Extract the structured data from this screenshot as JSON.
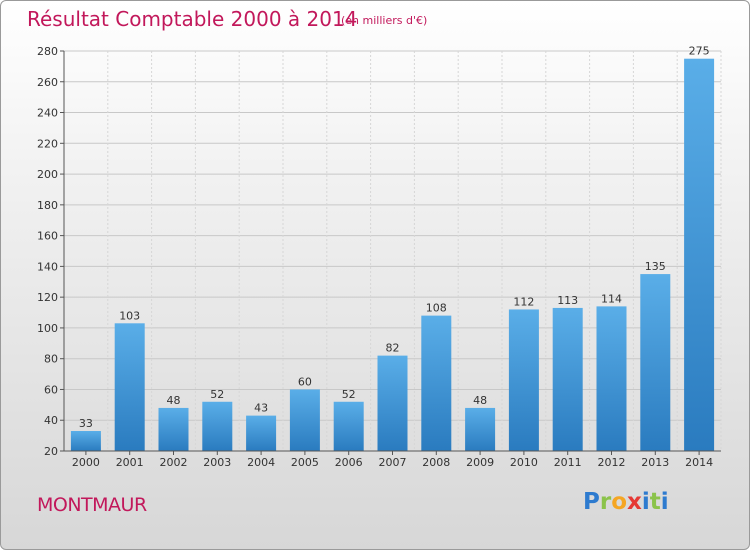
{
  "title": "Résultat Comptable 2000 à 2014",
  "subtitle": "(en milliers d'€)",
  "location": "MONTMAUR",
  "logo": {
    "letters": [
      "P",
      "r",
      "o",
      "x",
      "i",
      "t",
      "i"
    ],
    "colors": [
      "#2e7bcf",
      "#8bc34a",
      "#f5a623",
      "#e53935",
      "#2e7bcf",
      "#8bc34a",
      "#2e7bcf"
    ]
  },
  "colors": {
    "bar_light": "#5aaee8",
    "bar_dark": "#2a7bbf",
    "title": "#c2185b"
  },
  "chart_data": {
    "type": "bar",
    "categories": [
      "2000",
      "2001",
      "2002",
      "2003",
      "2004",
      "2005",
      "2006",
      "2007",
      "2008",
      "2009",
      "2010",
      "2011",
      "2012",
      "2013",
      "2014"
    ],
    "values": [
      33,
      103,
      48,
      52,
      43,
      60,
      52,
      82,
      108,
      48,
      112,
      113,
      114,
      135,
      275
    ],
    "ylim": [
      20,
      280
    ],
    "yticks": [
      20,
      40,
      60,
      80,
      100,
      120,
      140,
      160,
      180,
      200,
      220,
      240,
      260,
      280
    ],
    "grid": true,
    "xlabel": "",
    "ylabel": ""
  }
}
